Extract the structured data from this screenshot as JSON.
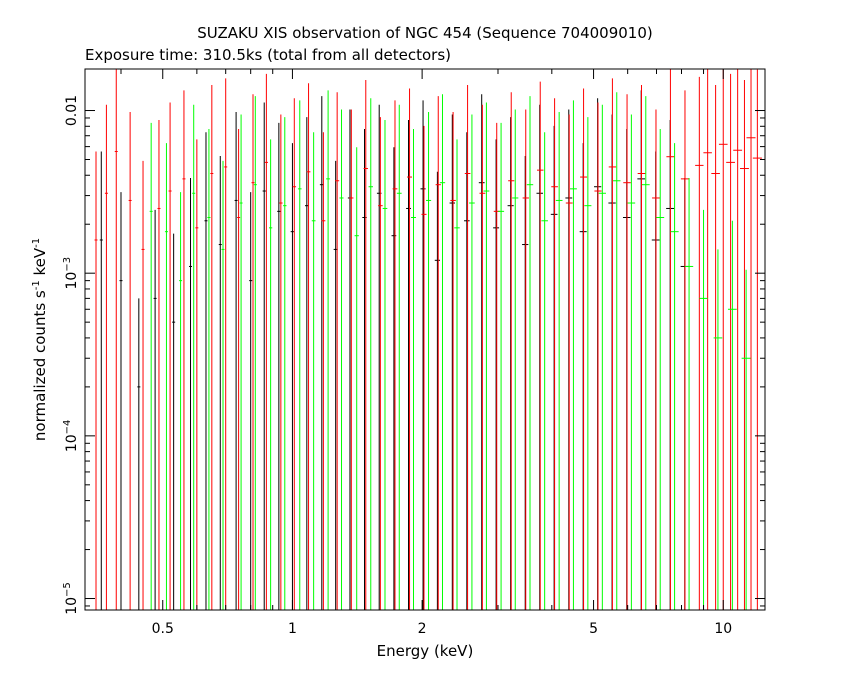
{
  "chart_data": {
    "type": "scatter",
    "title": "SUZAKU XIS observation of NGC 454 (Sequence 704009010)",
    "subtitle": "Exposure time: 310.5ks (total from all detectors)",
    "xlabel": "Energy (keV)",
    "ylabel_main": "normalized counts s",
    "ylabel_mid": " keV",
    "ylabel_exp": "-1",
    "x_scale": "log",
    "y_scale": "log",
    "xlim": [
      0.33,
      12.5
    ],
    "ylim": [
      8.5e-06,
      0.018
    ],
    "x_ticks": [
      {
        "value": 0.5,
        "label": "0.5"
      },
      {
        "value": 1,
        "label": "1"
      },
      {
        "value": 2,
        "label": "2"
      },
      {
        "value": 5,
        "label": "5"
      },
      {
        "value": 10,
        "label": "10"
      }
    ],
    "y_ticks": [
      {
        "value": 0.01,
        "label": "0.01",
        "exp": ""
      },
      {
        "value": 0.001,
        "label": "10",
        "exp": "−3"
      },
      {
        "value": 0.0001,
        "label": "10",
        "exp": "−4"
      },
      {
        "value": 1e-05,
        "label": "10",
        "exp": "−5"
      }
    ],
    "grid": false,
    "legend": "none",
    "series": [
      {
        "color": "#000000",
        "x": [
          0.36,
          0.4,
          0.44,
          0.48,
          0.53,
          0.58,
          0.63,
          0.68,
          0.74,
          0.8,
          0.86,
          0.93,
          1.0,
          1.08,
          1.17,
          1.26,
          1.36,
          1.47,
          1.59,
          1.72,
          1.86,
          2.01,
          2.17,
          2.35,
          2.54,
          2.75,
          2.97,
          3.21,
          3.47,
          3.75,
          4.05,
          4.38,
          4.73,
          5.11,
          5.52,
          5.97,
          6.45,
          6.97,
          7.53,
          8.14
        ],
        "y": [
          0.0016,
          0.0009,
          0.0002,
          0.0007,
          0.0005,
          0.0011,
          0.0021,
          0.0015,
          0.0028,
          0.0009,
          0.0032,
          0.0024,
          0.0018,
          0.0026,
          0.0035,
          0.0014,
          0.0029,
          0.0022,
          0.0031,
          0.0017,
          0.0025,
          0.0033,
          0.0012,
          0.0027,
          0.0021,
          0.0036,
          0.0019,
          0.0026,
          0.0015,
          0.0031,
          0.0023,
          0.0029,
          0.0018,
          0.0034,
          0.0027,
          0.0022,
          0.0038,
          0.0016,
          0.0025,
          0.0011
        ]
      },
      {
        "color": "#ff0000",
        "x": [
          0.35,
          0.37,
          0.39,
          0.42,
          0.45,
          0.49,
          0.52,
          0.56,
          0.6,
          0.65,
          0.7,
          0.75,
          0.81,
          0.87,
          0.94,
          1.01,
          1.09,
          1.18,
          1.27,
          1.37,
          1.48,
          1.6,
          1.73,
          1.87,
          2.02,
          2.18,
          2.36,
          2.55,
          2.76,
          2.98,
          3.22,
          3.48,
          3.76,
          4.06,
          4.39,
          4.74,
          5.12,
          5.53,
          5.98,
          6.46,
          6.98,
          7.54,
          8.15,
          8.8,
          9.2,
          9.6,
          10.0,
          10.4,
          10.8,
          11.2,
          11.6,
          12.0
        ],
        "y": [
          0.0016,
          0.0031,
          0.0056,
          0.0028,
          0.0014,
          0.0025,
          0.0032,
          0.0038,
          0.0019,
          0.0041,
          0.0045,
          0.0022,
          0.0036,
          0.0048,
          0.0027,
          0.0034,
          0.0042,
          0.0021,
          0.0037,
          0.0029,
          0.0044,
          0.0026,
          0.0033,
          0.0039,
          0.0023,
          0.0035,
          0.0028,
          0.0041,
          0.0031,
          0.0024,
          0.0037,
          0.0029,
          0.0043,
          0.0034,
          0.0027,
          0.0039,
          0.0032,
          0.0045,
          0.0036,
          0.0041,
          0.0029,
          0.0052,
          0.0038,
          0.0046,
          0.0055,
          0.0041,
          0.0062,
          0.0048,
          0.0057,
          0.0044,
          0.0068,
          0.0051
        ]
      },
      {
        "color": "#00ff00",
        "x": [
          0.47,
          0.51,
          0.55,
          0.59,
          0.64,
          0.69,
          0.76,
          0.82,
          0.89,
          0.96,
          1.04,
          1.12,
          1.21,
          1.3,
          1.41,
          1.52,
          1.64,
          1.77,
          1.91,
          2.07,
          2.23,
          2.41,
          2.61,
          2.82,
          3.05,
          3.29,
          3.56,
          3.85,
          4.16,
          4.49,
          4.85,
          5.24,
          5.66,
          6.12,
          6.61,
          7.14,
          7.71,
          8.33,
          9.0,
          9.72,
          10.5,
          11.3
        ],
        "y": [
          0.0024,
          0.0018,
          0.0009,
          0.0031,
          0.0022,
          0.0014,
          0.0027,
          0.0035,
          0.0019,
          0.0026,
          0.0033,
          0.0021,
          0.0038,
          0.0029,
          0.0017,
          0.0034,
          0.0025,
          0.0031,
          0.0022,
          0.0028,
          0.0036,
          0.0019,
          0.0027,
          0.0032,
          0.0024,
          0.0029,
          0.0035,
          0.0021,
          0.0028,
          0.0033,
          0.0026,
          0.0031,
          0.0037,
          0.0027,
          0.0035,
          0.0022,
          0.0018,
          0.0011,
          0.0007,
          0.0004,
          0.0006,
          0.0003
        ]
      }
    ]
  }
}
